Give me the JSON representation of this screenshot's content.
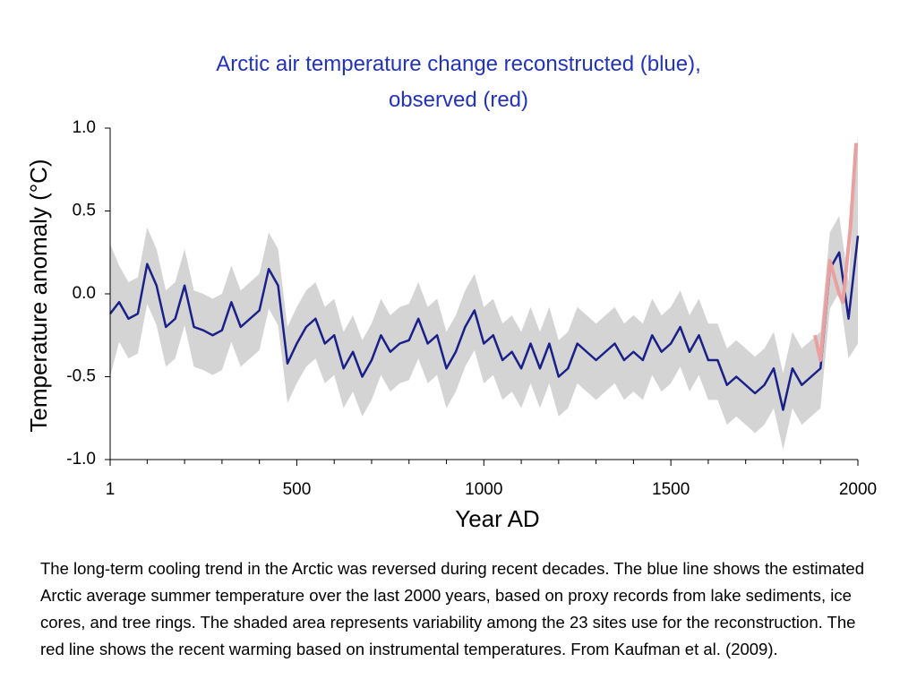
{
  "chart_data": {
    "type": "line",
    "title": "Arctic air temperature change reconstructed (blue), observed (red)",
    "xlabel": "Year AD",
    "ylabel": "Temperature anomaly (°C)",
    "xlim": [
      1,
      2000
    ],
    "ylim": [
      -1,
      1
    ],
    "xticks": [
      1,
      500,
      1000,
      1500,
      2000
    ],
    "xminor_ticks": [
      100,
      200,
      300,
      400,
      600,
      700,
      800,
      900,
      1100,
      1200,
      1300,
      1400,
      1600,
      1700,
      1800,
      1900
    ],
    "yticks": [
      {
        "value": 1,
        "label": "1.0"
      },
      {
        "value": 0.5,
        "label": "0.5"
      },
      {
        "value": 0,
        "label": "0.0"
      },
      {
        "value": -0.5,
        "label": "-0.5"
      },
      {
        "value": -1,
        "label": "-1.0"
      }
    ],
    "series": [
      {
        "color": "#1a2088",
        "band_color": "#d4d4d4",
        "x": [
          1,
          25,
          50,
          75,
          100,
          125,
          150,
          175,
          200,
          225,
          250,
          275,
          300,
          325,
          350,
          375,
          400,
          425,
          450,
          475,
          500,
          525,
          550,
          575,
          600,
          625,
          650,
          675,
          700,
          725,
          750,
          775,
          800,
          825,
          850,
          875,
          900,
          925,
          950,
          975,
          1000,
          1025,
          1050,
          1075,
          1100,
          1125,
          1150,
          1175,
          1200,
          1225,
          1250,
          1275,
          1300,
          1325,
          1350,
          1375,
          1400,
          1425,
          1450,
          1475,
          1500,
          1525,
          1550,
          1575,
          1600,
          1625,
          1650,
          1675,
          1700,
          1725,
          1750,
          1775,
          1800,
          1825,
          1850,
          1875,
          1900,
          1925,
          1950,
          1975,
          2000
        ],
        "values": [
          -0.12,
          -0.05,
          -0.15,
          -0.12,
          0.18,
          0.05,
          -0.2,
          -0.15,
          0.05,
          -0.2,
          -0.22,
          -0.25,
          -0.22,
          -0.05,
          -0.2,
          -0.15,
          -0.1,
          0.15,
          0.05,
          -0.42,
          -0.3,
          -0.2,
          -0.15,
          -0.3,
          -0.25,
          -0.45,
          -0.35,
          -0.5,
          -0.4,
          -0.25,
          -0.35,
          -0.3,
          -0.28,
          -0.15,
          -0.3,
          -0.25,
          -0.45,
          -0.35,
          -0.2,
          -0.1,
          -0.3,
          -0.25,
          -0.4,
          -0.35,
          -0.45,
          -0.3,
          -0.45,
          -0.3,
          -0.5,
          -0.45,
          -0.3,
          -0.35,
          -0.4,
          -0.35,
          -0.3,
          -0.4,
          -0.35,
          -0.4,
          -0.25,
          -0.35,
          -0.3,
          -0.2,
          -0.35,
          -0.25,
          -0.4,
          -0.4,
          -0.55,
          -0.5,
          -0.55,
          -0.6,
          -0.55,
          -0.45,
          -0.7,
          -0.45,
          -0.55,
          -0.5,
          -0.45,
          0.15,
          0.25,
          -0.15,
          0.35
        ],
        "band_upper": [
          0.3,
          0.17,
          0.07,
          0.1,
          0.4,
          0.27,
          0.02,
          0.07,
          0.27,
          0.02,
          0,
          -0.03,
          0,
          0.17,
          0.02,
          0.07,
          0.12,
          0.37,
          0.27,
          -0.2,
          -0.08,
          0.02,
          0.07,
          -0.08,
          -0.03,
          -0.23,
          -0.13,
          -0.28,
          -0.18,
          -0.03,
          -0.13,
          -0.08,
          -0.06,
          0.07,
          -0.08,
          -0.03,
          -0.23,
          -0.13,
          0.02,
          0.12,
          -0.08,
          -0.03,
          -0.18,
          -0.13,
          -0.23,
          -0.08,
          -0.23,
          -0.08,
          -0.28,
          -0.23,
          -0.08,
          -0.13,
          -0.18,
          -0.13,
          -0.08,
          -0.18,
          -0.13,
          -0.18,
          -0.03,
          -0.13,
          -0.08,
          0.02,
          -0.13,
          -0.03,
          -0.18,
          -0.18,
          -0.33,
          -0.28,
          -0.33,
          -0.38,
          -0.33,
          -0.23,
          -0.48,
          -0.23,
          -0.33,
          -0.28,
          -0.23,
          0.37,
          0.47,
          0.07,
          0.95
        ],
        "band_lower": [
          -0.5,
          -0.29,
          -0.39,
          -0.36,
          -0.06,
          -0.19,
          -0.44,
          -0.39,
          -0.19,
          -0.44,
          -0.46,
          -0.49,
          -0.46,
          -0.29,
          -0.44,
          -0.39,
          -0.34,
          -0.09,
          -0.19,
          -0.66,
          -0.54,
          -0.44,
          -0.39,
          -0.54,
          -0.49,
          -0.69,
          -0.59,
          -0.74,
          -0.64,
          -0.49,
          -0.59,
          -0.54,
          -0.52,
          -0.39,
          -0.54,
          -0.49,
          -0.69,
          -0.59,
          -0.44,
          -0.34,
          -0.54,
          -0.49,
          -0.64,
          -0.59,
          -0.69,
          -0.54,
          -0.69,
          -0.54,
          -0.74,
          -0.69,
          -0.54,
          -0.59,
          -0.64,
          -0.59,
          -0.54,
          -0.64,
          -0.59,
          -0.64,
          -0.49,
          -0.59,
          -0.54,
          -0.44,
          -0.59,
          -0.49,
          -0.64,
          -0.64,
          -0.79,
          -0.74,
          -0.79,
          -0.84,
          -0.79,
          -0.69,
          -0.94,
          -0.69,
          -0.79,
          -0.74,
          -0.69,
          -0.09,
          0.01,
          -0.39,
          -0.3
        ]
      },
      {
        "color": "#eaa0a0",
        "x": [
          1885,
          1900,
          1925,
          1950,
          1960,
          1980,
          1995,
          2000
        ],
        "values": [
          -0.25,
          -0.4,
          0.2,
          0,
          -0.05,
          0.4,
          0.9,
          0.9
        ]
      }
    ]
  },
  "caption": "The long-term cooling trend in the Arctic was reversed during recent decades. The blue line shows the estimated Arctic average summer temperature over the last 2000 years, based on proxy records from lake sediments, ice cores, and tree rings. The shaded area represents variability among the 23 sites use for the reconstruction. The red line shows the recent warming based on instrumental temperatures. From Kaufman et al. (2009)."
}
